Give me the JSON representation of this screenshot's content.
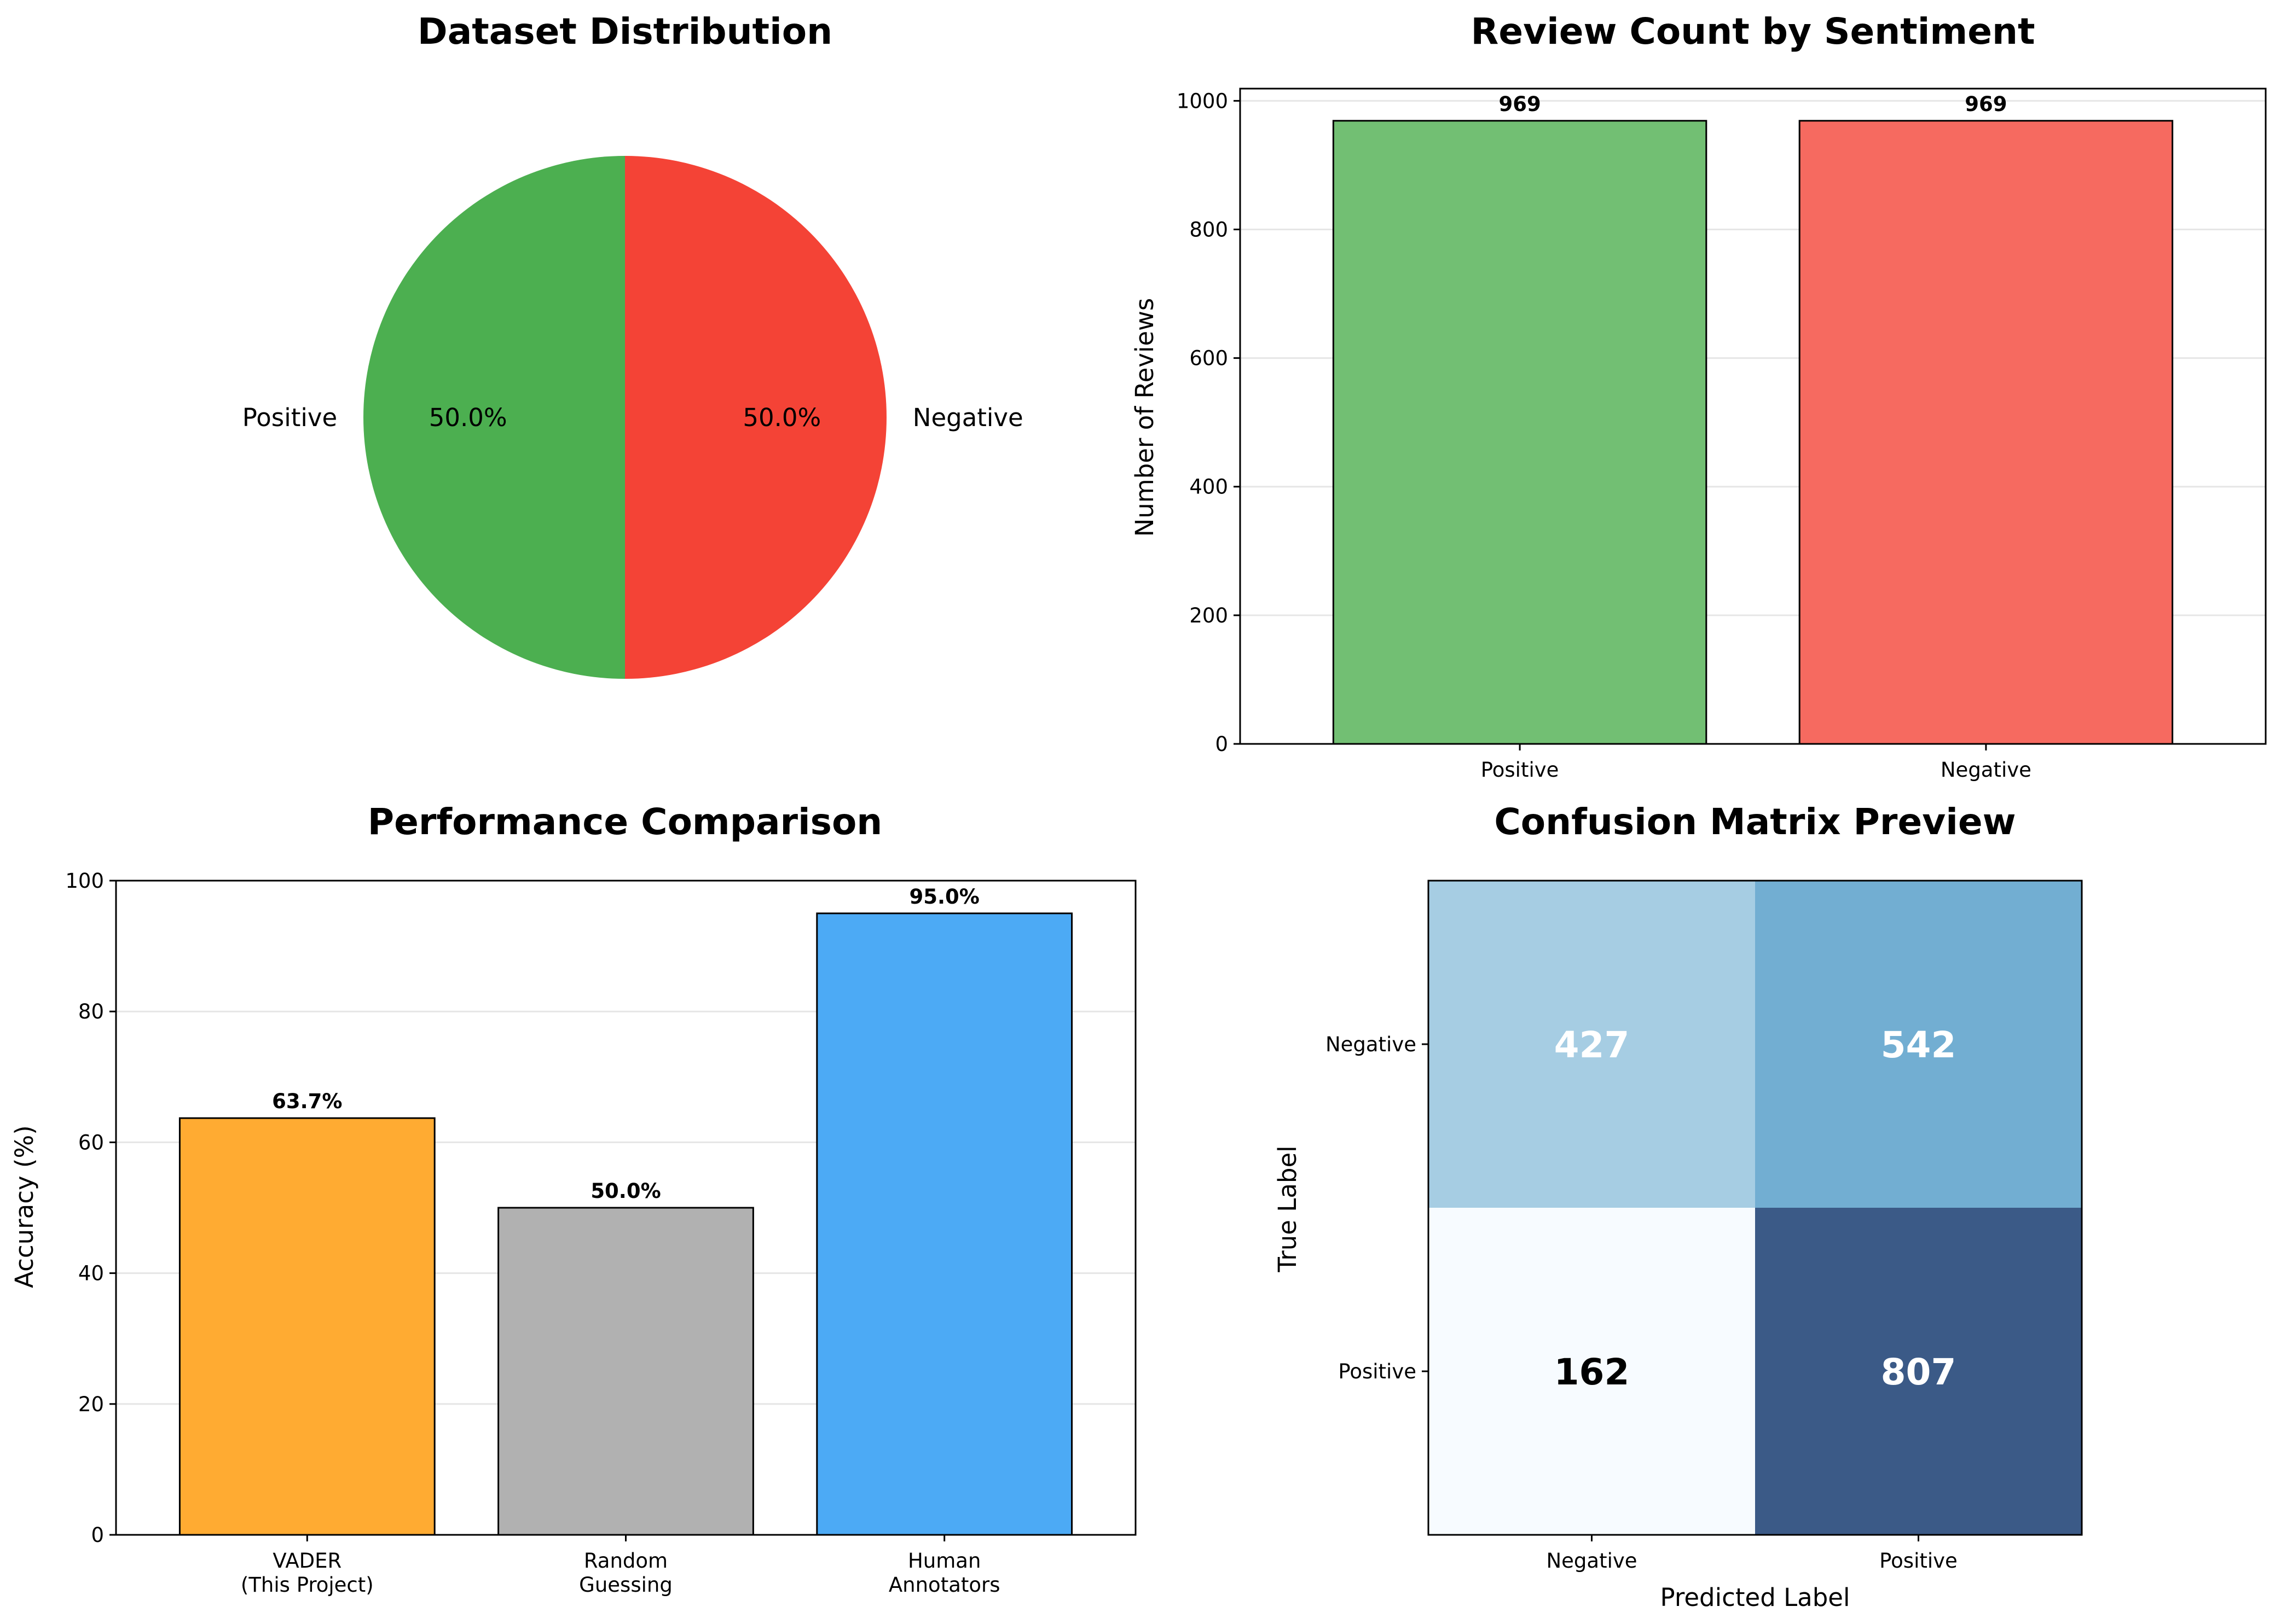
{
  "chart_data": [
    {
      "type": "pie",
      "title": "Dataset Distribution",
      "labels": [
        "Positive",
        "Negative"
      ],
      "values": [
        50.0,
        50.0
      ],
      "pct_labels": [
        "50.0%",
        "50.0%"
      ],
      "colors": [
        "#4caf50",
        "#f44336"
      ]
    },
    {
      "type": "bar",
      "title": "Review Count by Sentiment",
      "categories": [
        "Positive",
        "Negative"
      ],
      "values": [
        969,
        969
      ],
      "value_labels": [
        "969",
        "969"
      ],
      "ylabel": "Number of Reviews",
      "xlabel": "",
      "ylim": [
        0,
        1019
      ],
      "yticks": [
        0,
        200,
        400,
        600,
        800,
        1000
      ],
      "grid": "y",
      "colors": [
        "#72bf73",
        "#f66a60"
      ]
    },
    {
      "type": "bar",
      "title": "Performance Comparison",
      "categories": [
        [
          "VADER",
          "(This Project)"
        ],
        [
          "Random",
          "Guessing"
        ],
        [
          "Human",
          "Annotators"
        ]
      ],
      "values": [
        63.7,
        50.0,
        95.0
      ],
      "value_labels": [
        "63.7%",
        "50.0%",
        "95.0%"
      ],
      "ylabel": "Accuracy (%)",
      "xlabel": "",
      "ylim": [
        0,
        100
      ],
      "yticks": [
        0,
        20,
        40,
        60,
        80,
        100
      ],
      "grid": "y",
      "colors": [
        "#ffab32",
        "#b1b1b1",
        "#4caaf5"
      ]
    },
    {
      "type": "heatmap",
      "title": "Confusion Matrix Preview",
      "xlabel": "Predicted Label",
      "ylabel": "True Label",
      "x_categories": [
        "Negative",
        "Positive"
      ],
      "y_categories": [
        "Negative",
        "Positive"
      ],
      "values": [
        [
          427,
          542
        ],
        [
          162,
          807
        ]
      ],
      "cell_colors": [
        [
          "#a6cde3",
          "#72aed2"
        ],
        [
          "#f7fbff",
          "#3b5a87"
        ]
      ],
      "text_colors": [
        [
          "#ffffff",
          "#ffffff"
        ],
        [
          "#000000",
          "#ffffff"
        ]
      ]
    }
  ]
}
